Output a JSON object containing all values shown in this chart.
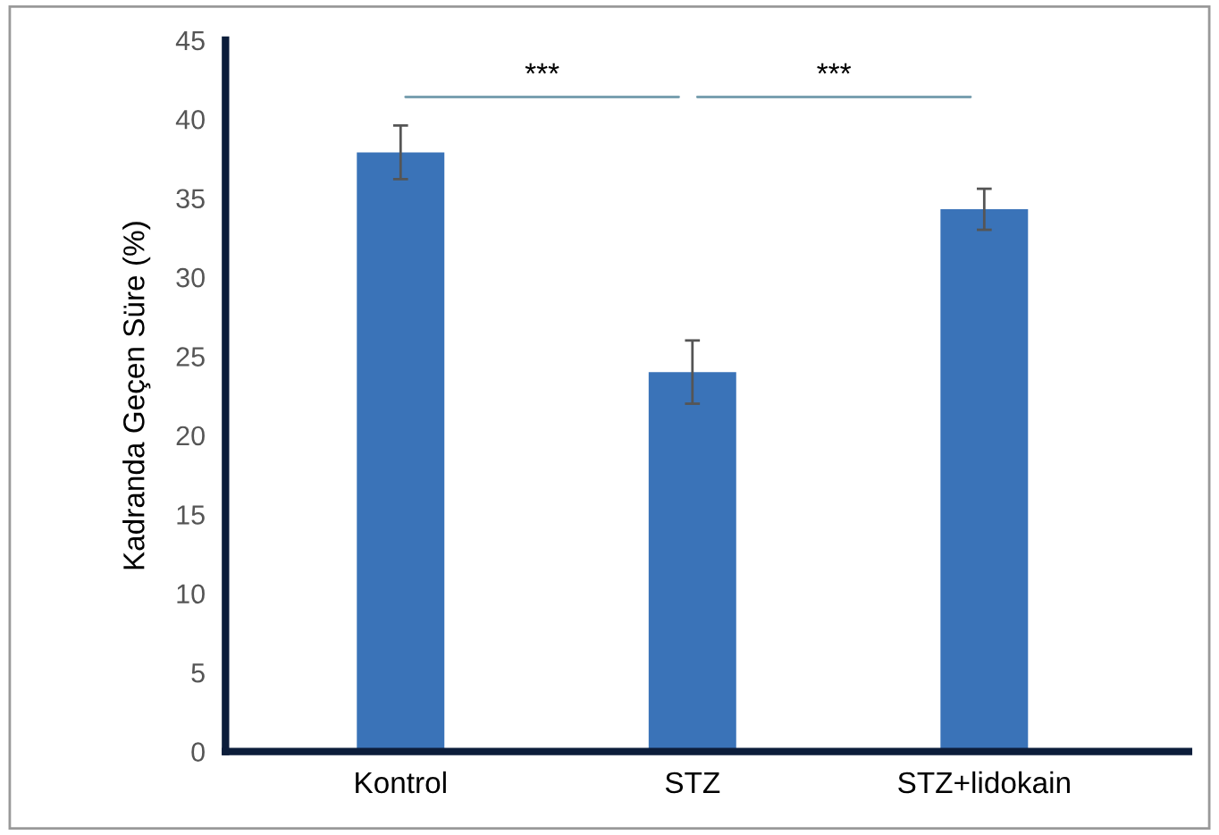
{
  "chart_data": {
    "type": "bar",
    "ylabel": "Kadranda Geçen Süre (%)",
    "categories": [
      "Kontrol",
      "STZ",
      "STZ+lidokain"
    ],
    "values": [
      37.9,
      24.0,
      34.3
    ],
    "errors": [
      1.7,
      2.0,
      1.3
    ],
    "color": "#3a73b8",
    "ylim": [
      0,
      45
    ],
    "yticks": [
      0,
      5,
      10,
      15,
      20,
      25,
      30,
      35,
      40,
      45
    ],
    "grid": false,
    "annotations": [
      "***",
      "***"
    ]
  }
}
